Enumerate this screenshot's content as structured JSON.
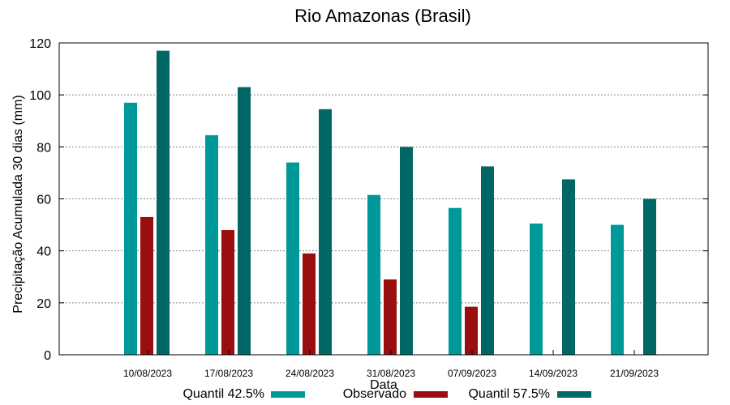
{
  "chart_data": {
    "type": "bar",
    "title": "Rio Amazonas (Brasil)",
    "xlabel": "Data",
    "ylabel": "Precipitação Acumulada 30 dias (mm)",
    "ylim": [
      0,
      120
    ],
    "yticks": [
      0,
      20,
      40,
      60,
      80,
      100,
      120
    ],
    "grid": true,
    "legend_position": "bottom",
    "categories": [
      "10/08/2023",
      "17/08/2023",
      "24/08/2023",
      "31/08/2023",
      "07/09/2023",
      "14/09/2023",
      "21/09/2023"
    ],
    "series": [
      {
        "name": "Quantil 42.5%",
        "color": "#009999",
        "values": [
          97,
          84.5,
          74,
          61.5,
          56.5,
          50.5,
          50
        ]
      },
      {
        "name": "Observado",
        "color": "#990f0f",
        "values": [
          53,
          48,
          39,
          29,
          18.5,
          null,
          null
        ]
      },
      {
        "name": "Quantil 57.5%",
        "color": "#006666",
        "values": [
          117,
          103,
          94.5,
          80,
          72.5,
          67.5,
          60
        ]
      }
    ]
  }
}
